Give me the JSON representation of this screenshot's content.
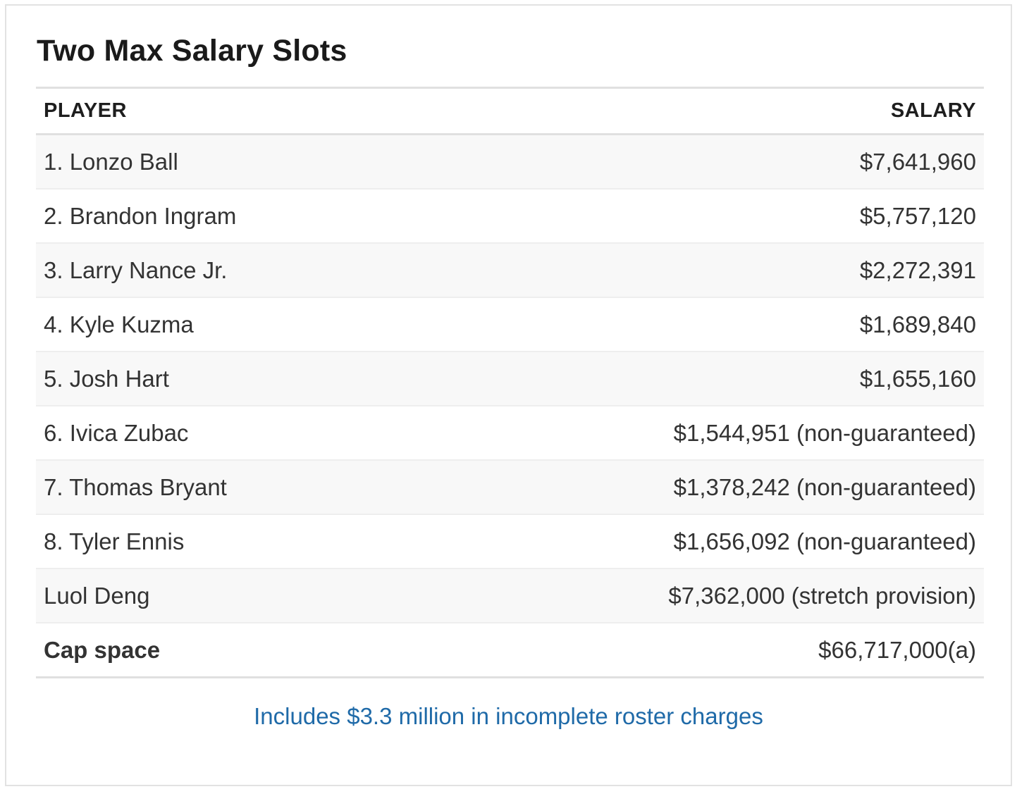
{
  "title": "Two Max Salary Slots",
  "table": {
    "headers": {
      "player": "PLAYER",
      "salary": "SALARY"
    },
    "rows": [
      {
        "player": "1. Lonzo Ball",
        "salary": "$7,641,960"
      },
      {
        "player": "2. Brandon Ingram",
        "salary": "$5,757,120"
      },
      {
        "player": "3. Larry Nance Jr.",
        "salary": "$2,272,391"
      },
      {
        "player": "4. Kyle Kuzma",
        "salary": "$1,689,840"
      },
      {
        "player": "5. Josh Hart",
        "salary": "$1,655,160"
      },
      {
        "player": "6. Ivica Zubac",
        "salary": "$1,544,951 (non-guaranteed)"
      },
      {
        "player": "7. Thomas Bryant",
        "salary": "$1,378,242 (non-guaranteed)"
      },
      {
        "player": "8. Tyler Ennis",
        "salary": "$1,656,092 (non-guaranteed)"
      },
      {
        "player": "Luol Deng",
        "salary": "$7,362,000 (stretch provision)"
      }
    ],
    "total": {
      "player": "Cap space",
      "salary": "$66,717,000(a)"
    }
  },
  "footnote": "Includes $3.3 million in incomplete roster charges"
}
